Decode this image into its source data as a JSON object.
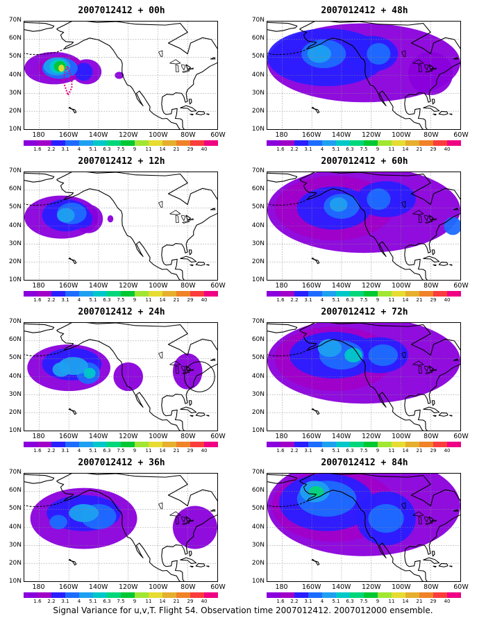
{
  "panels": [
    {
      "title": "2007012412 + 00h",
      "lead": 0
    },
    {
      "title": "2007012412 + 48h",
      "lead": 48
    },
    {
      "title": "2007012412 + 12h",
      "lead": 12
    },
    {
      "title": "2007012412 + 60h",
      "lead": 60
    },
    {
      "title": "2007012412 + 24h",
      "lead": 24
    },
    {
      "title": "2007012412 + 72h",
      "lead": 72
    },
    {
      "title": "2007012412 + 36h",
      "lead": 36
    },
    {
      "title": "2007012412 + 84h",
      "lead": 84
    }
  ],
  "lat_labels": [
    "70N",
    "60N",
    "50N",
    "40N",
    "30N",
    "20N",
    "10N"
  ],
  "lon_labels": [
    "180",
    "160W",
    "140W",
    "120W",
    "100W",
    "80W",
    "60W"
  ],
  "colorbar": {
    "levels": [
      "1.6",
      "2.2",
      "3.1",
      "4",
      "5.1",
      "6.3",
      "7.5",
      "9",
      "11",
      "14",
      "21",
      "29",
      "40"
    ],
    "colors": [
      "#8a00dc",
      "#a000c8",
      "#2a1eff",
      "#1e6cff",
      "#1ea0f0",
      "#00c8c8",
      "#00d77a",
      "#00c832",
      "#a0e632",
      "#e6dc32",
      "#e6af2d",
      "#f08228",
      "#fa3c3c",
      "#f00082"
    ]
  },
  "caption": "Signal Variance for u,v,T. Flight 54. Observation time 2007012412. 2007012000 ensemble.",
  "flight_track_color": "#e6007e",
  "chart_data": {
    "type": "heatmap",
    "variable": "Signal variance (u,v,T)",
    "lon_range": [
      -190,
      -60
    ],
    "lat_range": [
      10,
      70
    ],
    "levels": [
      1.6,
      2.2,
      3.1,
      4,
      5.1,
      6.3,
      7.5,
      9,
      11,
      14,
      21,
      29,
      40
    ],
    "frames": [
      {
        "lead_hours": 0,
        "max_level": 11,
        "center": {
          "lon": -163,
          "lat": 44
        }
      },
      {
        "lead_hours": 12,
        "max_level": 5.1,
        "center": {
          "lon": -160,
          "lat": 47
        }
      },
      {
        "lead_hours": 24,
        "max_level": 6.3,
        "center": {
          "lon": -150,
          "lat": 45
        }
      },
      {
        "lead_hours": 36,
        "max_level": 5.1,
        "center": {
          "lon": -140,
          "lat": 48
        }
      },
      {
        "lead_hours": 48,
        "max_level": 5.1,
        "center": {
          "lon": -150,
          "lat": 52
        }
      },
      {
        "lead_hours": 60,
        "max_level": 5.1,
        "center": {
          "lon": -140,
          "lat": 50
        }
      },
      {
        "lead_hours": 72,
        "max_level": 6.3,
        "center": {
          "lon": -140,
          "lat": 50
        }
      },
      {
        "lead_hours": 84,
        "max_level": 7.5,
        "center": {
          "lon": -155,
          "lat": 58
        }
      }
    ]
  }
}
